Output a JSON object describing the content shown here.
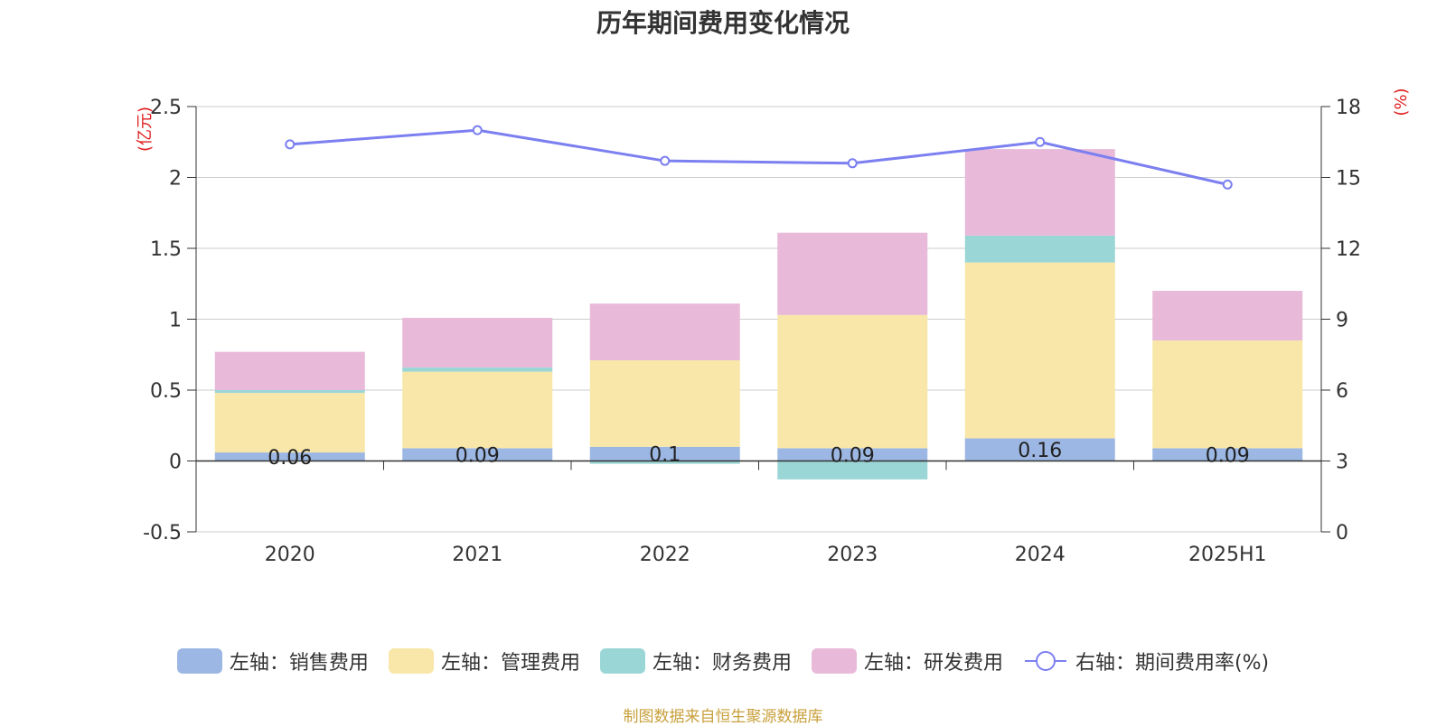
{
  "chart_data": {
    "type": "bar",
    "title": "历年期间费用变化情况",
    "categories": [
      "2020",
      "2021",
      "2022",
      "2023",
      "2024",
      "2025H1"
    ],
    "y_left_unit": "(亿元)",
    "y_right_unit": "(%)",
    "y_left_range": [
      -0.5,
      2.5
    ],
    "y_left_ticks": [
      "2.5",
      "2",
      "1.5",
      "1",
      "0.5",
      "0",
      "-0.5"
    ],
    "y_right_range": [
      0,
      18
    ],
    "y_right_ticks": [
      "18",
      "15",
      "12",
      "9",
      "6",
      "3",
      "0"
    ],
    "grid": true,
    "stacked": true,
    "series": [
      {
        "name": "左轴：销售费用",
        "type": "bar",
        "axis": "left",
        "color": "#9cb7e3",
        "values": [
          0.06,
          0.09,
          0.1,
          0.09,
          0.16,
          0.09
        ],
        "labels": [
          "0.06",
          "0.09",
          "0.1",
          "0.09",
          "0.16",
          "0.09"
        ]
      },
      {
        "name": "左轴：管理费用",
        "type": "bar",
        "axis": "left",
        "color": "#f8e7a8",
        "values": [
          0.42,
          0.54,
          0.61,
          0.94,
          1.24,
          0.76
        ]
      },
      {
        "name": "左轴：财务费用",
        "type": "bar",
        "axis": "left",
        "color": "#9bd6d6",
        "values": [
          0.02,
          0.03,
          -0.02,
          -0.13,
          0.19,
          0.0
        ]
      },
      {
        "name": "左轴：研发费用",
        "type": "bar",
        "axis": "left",
        "color": "#e8b9d9",
        "values": [
          0.27,
          0.35,
          0.4,
          0.58,
          0.61,
          0.35
        ]
      },
      {
        "name": "右轴：期间费用率(%)",
        "type": "line",
        "axis": "right",
        "color": "#7b7ff0",
        "values": [
          16.4,
          17.0,
          15.7,
          15.6,
          16.5,
          14.7
        ]
      }
    ],
    "legend_position": "bottom"
  },
  "source_note": "制图数据来自恒生聚源数据库"
}
